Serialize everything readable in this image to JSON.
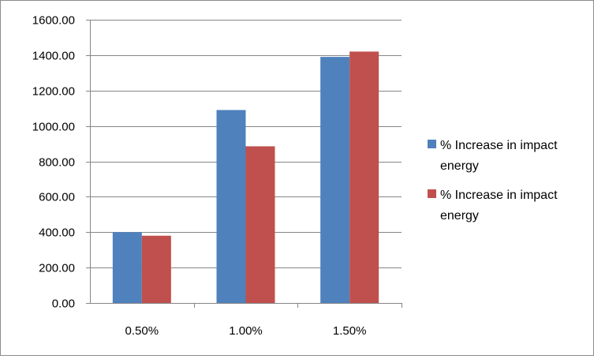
{
  "chart_data": {
    "type": "bar",
    "categories": [
      "0.50%",
      "1.00%",
      "1.50%"
    ],
    "series": [
      {
        "name": "% Increase in impact energy",
        "color": "#4f81bd",
        "values": [
          400,
          1090,
          1390
        ]
      },
      {
        "name": "% Increase in impact energy",
        "color": "#c0504d",
        "values": [
          380,
          885,
          1420
        ]
      }
    ],
    "y_tick_labels": [
      "0.00",
      "200.00",
      "400.00",
      "600.00",
      "800.00",
      "1000.00",
      "1200.00",
      "1400.00",
      "1600.00"
    ],
    "ylim": [
      0,
      1600
    ],
    "y_step": 200,
    "grid": true,
    "legend_position": "right",
    "title": "",
    "xlabel": "",
    "ylabel": ""
  }
}
